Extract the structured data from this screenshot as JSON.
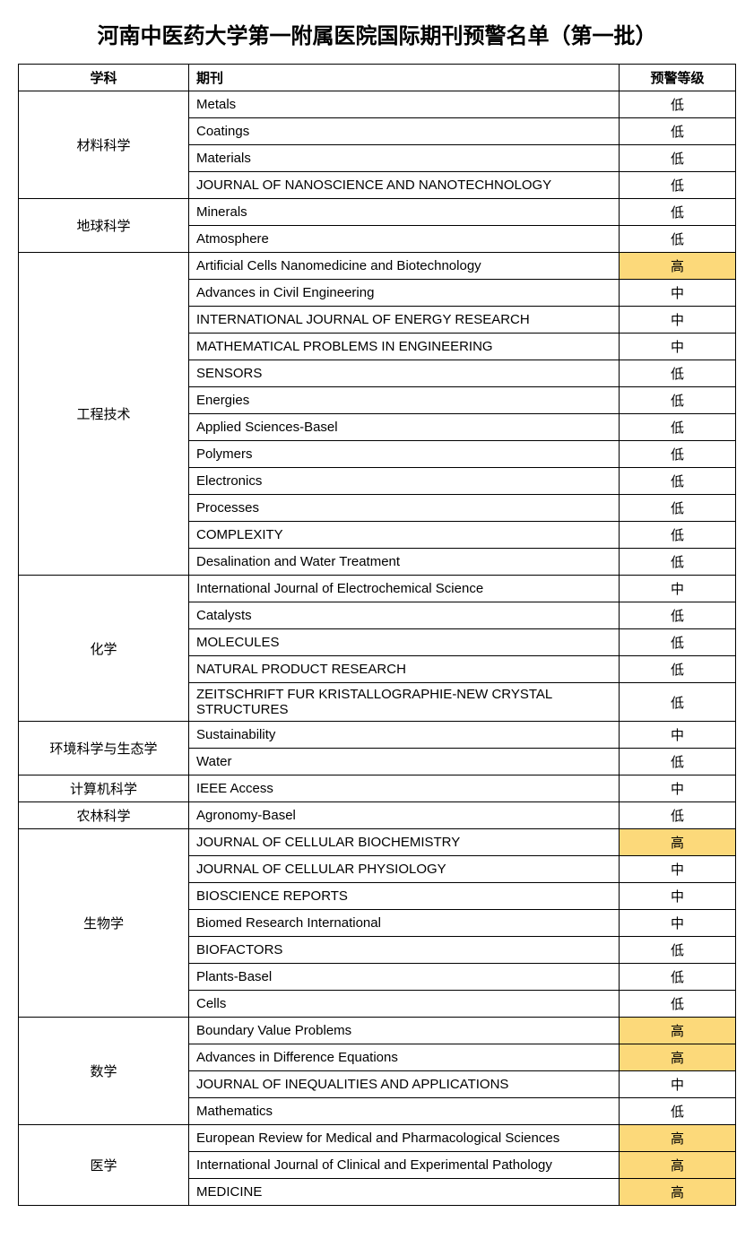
{
  "title": "河南中医药大学第一附属医院国际期刊预警名单（第一批）",
  "columns": {
    "subject": "学科",
    "journal": "期刊",
    "level": "预警等级"
  },
  "highlight_color": "#fcd97a",
  "groups": [
    {
      "subject": "材料科学",
      "rows": [
        {
          "journal": "Metals",
          "level": "低"
        },
        {
          "journal": "Coatings",
          "level": "低"
        },
        {
          "journal": "Materials",
          "level": "低"
        },
        {
          "journal": "JOURNAL OF NANOSCIENCE AND NANOTECHNOLOGY",
          "level": "低"
        }
      ]
    },
    {
      "subject": "地球科学",
      "rows": [
        {
          "journal": "Minerals",
          "level": "低"
        },
        {
          "journal": "Atmosphere",
          "level": "低"
        }
      ]
    },
    {
      "subject": "工程技术",
      "rows": [
        {
          "journal": "Artificial Cells Nanomedicine and Biotechnology",
          "level": "高"
        },
        {
          "journal": "Advances in Civil Engineering",
          "level": "中"
        },
        {
          "journal": "INTERNATIONAL JOURNAL OF ENERGY RESEARCH",
          "level": "中"
        },
        {
          "journal": "MATHEMATICAL PROBLEMS IN ENGINEERING",
          "level": "中"
        },
        {
          "journal": "SENSORS",
          "level": "低"
        },
        {
          "journal": "Energies",
          "level": "低"
        },
        {
          "journal": "Applied Sciences-Basel",
          "level": "低"
        },
        {
          "journal": "Polymers",
          "level": "低"
        },
        {
          "journal": "Electronics",
          "level": "低"
        },
        {
          "journal": "Processes",
          "level": "低"
        },
        {
          "journal": "COMPLEXITY",
          "level": "低"
        },
        {
          "journal": "Desalination and Water Treatment",
          "level": "低"
        }
      ]
    },
    {
      "subject": "化学",
      "rows": [
        {
          "journal": "International Journal of Electrochemical Science",
          "level": "中"
        },
        {
          "journal": "Catalysts",
          "level": "低"
        },
        {
          "journal": "MOLECULES",
          "level": "低"
        },
        {
          "journal": "NATURAL PRODUCT RESEARCH",
          "level": "低"
        },
        {
          "journal": "ZEITSCHRIFT FUR KRISTALLOGRAPHIE-NEW CRYSTAL STRUCTURES",
          "level": "低"
        }
      ]
    },
    {
      "subject": "环境科学与生态学",
      "rows": [
        {
          "journal": "Sustainability",
          "level": "中"
        },
        {
          "journal": "Water",
          "level": "低"
        }
      ]
    },
    {
      "subject": "计算机科学",
      "rows": [
        {
          "journal": "IEEE Access",
          "level": "中"
        }
      ]
    },
    {
      "subject": "农林科学",
      "rows": [
        {
          "journal": "Agronomy-Basel",
          "level": "低"
        }
      ]
    },
    {
      "subject": "生物学",
      "rows": [
        {
          "journal": "JOURNAL OF CELLULAR BIOCHEMISTRY",
          "level": "高"
        },
        {
          "journal": "JOURNAL OF CELLULAR PHYSIOLOGY",
          "level": "中"
        },
        {
          "journal": "BIOSCIENCE REPORTS",
          "level": "中"
        },
        {
          "journal": "Biomed Research International",
          "level": "中"
        },
        {
          "journal": "BIOFACTORS",
          "level": "低"
        },
        {
          "journal": "Plants-Basel",
          "level": "低"
        },
        {
          "journal": "Cells",
          "level": "低"
        }
      ]
    },
    {
      "subject": "数学",
      "rows": [
        {
          "journal": "Boundary Value Problems",
          "level": "高"
        },
        {
          "journal": "Advances in Difference Equations",
          "level": "高"
        },
        {
          "journal": "JOURNAL OF INEQUALITIES AND APPLICATIONS",
          "level": "中"
        },
        {
          "journal": "Mathematics",
          "level": "低"
        }
      ]
    },
    {
      "subject": "医学",
      "rows": [
        {
          "journal": "European Review for Medical and Pharmacological Sciences",
          "level": "高"
        },
        {
          "journal": "International Journal of Clinical and Experimental Pathology",
          "level": "高"
        },
        {
          "journal": "MEDICINE",
          "level": "高"
        }
      ]
    }
  ]
}
